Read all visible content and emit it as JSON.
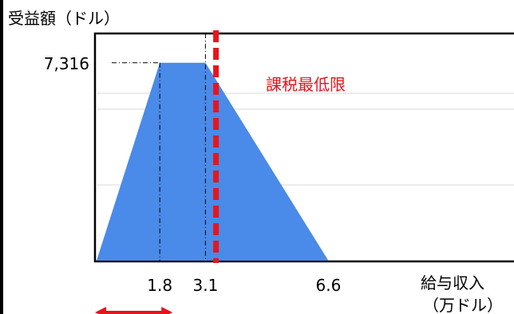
{
  "chart_data": {
    "type": "area",
    "ylabel": "受益額（ドル）",
    "xlabel_line1": "給与収入",
    "xlabel_line2": "（万ドル）",
    "x_ticks": [
      "1.8",
      "3.1",
      "6.6"
    ],
    "y_ticks": [
      "7,316"
    ],
    "x": [
      0,
      1.8,
      3.1,
      6.6
    ],
    "y": [
      0,
      7316,
      7316,
      0
    ],
    "xlim": [
      0,
      12
    ],
    "ylim": [
      0,
      8400
    ],
    "grid": true,
    "annotation": {
      "label": "課税最低限",
      "x": 3.4
    },
    "colors": {
      "fill": "#4a8ae8",
      "threshold": "#e8141c",
      "arrow": "#e8141c"
    }
  }
}
